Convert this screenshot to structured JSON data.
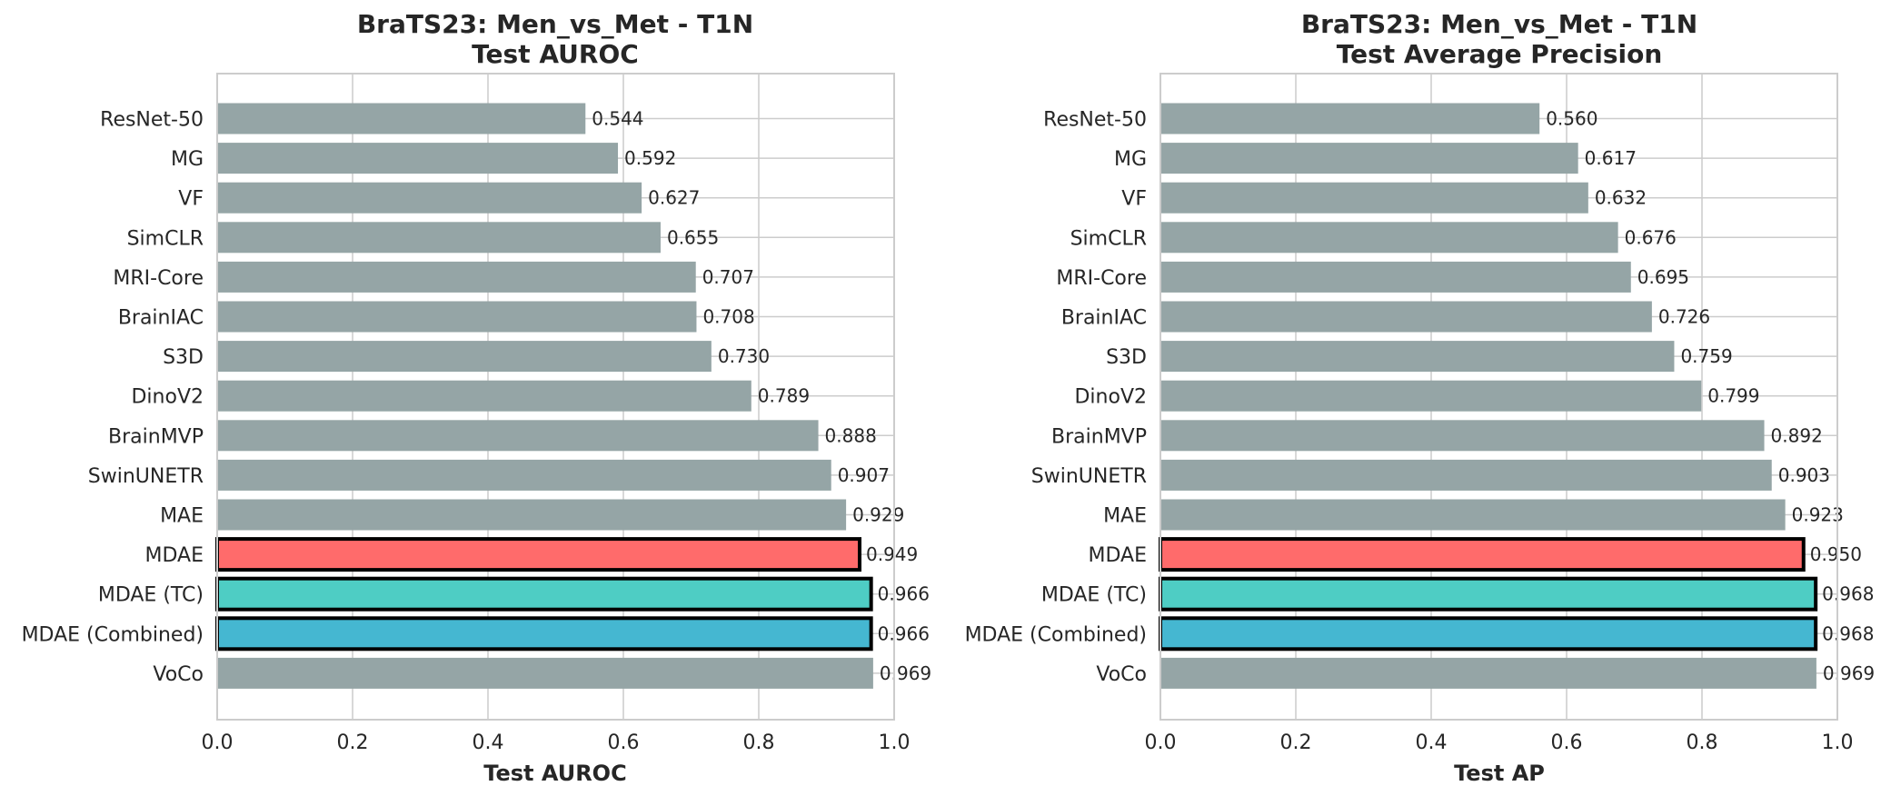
{
  "chart_data": [
    {
      "type": "bar",
      "orientation": "horizontal",
      "title": "BraTS23: Men_vs_Met - T1N",
      "subtitle": "Test AUROC",
      "xlabel": "Test AUROC",
      "ylabel": "",
      "xlim": [
        0,
        1
      ],
      "xticks": [
        "0.0",
        "0.2",
        "0.4",
        "0.6",
        "0.8",
        "1.0"
      ],
      "grid": true,
      "categories": [
        "ResNet-50",
        "MG",
        "VF",
        "SimCLR",
        "MRI-Core",
        "BrainIAC",
        "S3D",
        "DinoV2",
        "BrainMVP",
        "SwinUNETR",
        "MAE",
        "MDAE",
        "MDAE (TC)",
        "MDAE (Combined)",
        "VoCo"
      ],
      "values": [
        0.544,
        0.592,
        0.627,
        0.655,
        0.707,
        0.708,
        0.73,
        0.789,
        0.888,
        0.907,
        0.929,
        0.949,
        0.966,
        0.966,
        0.969
      ],
      "value_labels": [
        "0.544",
        "0.592",
        "0.627",
        "0.655",
        "0.707",
        "0.708",
        "0.730",
        "0.789",
        "0.888",
        "0.907",
        "0.929",
        "0.949",
        "0.966",
        "0.966",
        "0.969"
      ],
      "colors": [
        "#95a5a6",
        "#95a5a6",
        "#95a5a6",
        "#95a5a6",
        "#95a5a6",
        "#95a5a6",
        "#95a5a6",
        "#95a5a6",
        "#95a5a6",
        "#95a5a6",
        "#95a5a6",
        "#ff6b6b",
        "#4ecdc4",
        "#45b7d1",
        "#95a5a6"
      ],
      "highlighted": [
        false,
        false,
        false,
        false,
        false,
        false,
        false,
        false,
        false,
        false,
        false,
        true,
        true,
        true,
        false
      ]
    },
    {
      "type": "bar",
      "orientation": "horizontal",
      "title": "BraTS23: Men_vs_Met - T1N",
      "subtitle": "Test Average Precision",
      "xlabel": "Test AP",
      "ylabel": "",
      "xlim": [
        0,
        1
      ],
      "xticks": [
        "0.0",
        "0.2",
        "0.4",
        "0.6",
        "0.8",
        "1.0"
      ],
      "grid": true,
      "categories": [
        "ResNet-50",
        "MG",
        "VF",
        "SimCLR",
        "MRI-Core",
        "BrainIAC",
        "S3D",
        "DinoV2",
        "BrainMVP",
        "SwinUNETR",
        "MAE",
        "MDAE",
        "MDAE (TC)",
        "MDAE (Combined)",
        "VoCo"
      ],
      "values": [
        0.56,
        0.617,
        0.632,
        0.676,
        0.695,
        0.726,
        0.759,
        0.799,
        0.892,
        0.903,
        0.923,
        0.95,
        0.968,
        0.968,
        0.969
      ],
      "value_labels": [
        "0.560",
        "0.617",
        "0.632",
        "0.676",
        "0.695",
        "0.726",
        "0.759",
        "0.799",
        "0.892",
        "0.903",
        "0.923",
        "0.950",
        "0.968",
        "0.968",
        "0.969"
      ],
      "colors": [
        "#95a5a6",
        "#95a5a6",
        "#95a5a6",
        "#95a5a6",
        "#95a5a6",
        "#95a5a6",
        "#95a5a6",
        "#95a5a6",
        "#95a5a6",
        "#95a5a6",
        "#95a5a6",
        "#ff6b6b",
        "#4ecdc4",
        "#45b7d1",
        "#95a5a6"
      ],
      "highlighted": [
        false,
        false,
        false,
        false,
        false,
        false,
        false,
        false,
        false,
        false,
        false,
        true,
        true,
        true,
        false
      ]
    }
  ]
}
